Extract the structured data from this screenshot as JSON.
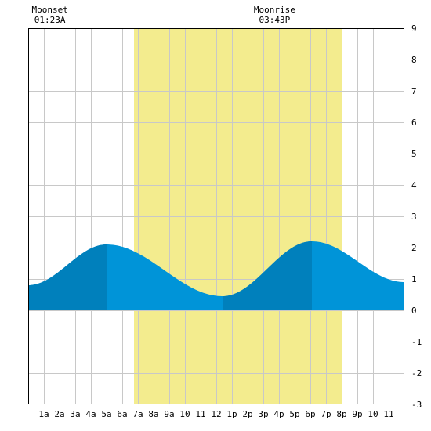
{
  "chart_data": {
    "type": "area",
    "annotations": [
      {
        "label": "Moonset",
        "time": "01:23A",
        "hour": 1.383
      },
      {
        "label": "Moonrise",
        "time": "03:43P",
        "hour": 15.717
      }
    ],
    "x_tick_labels": [
      "1a",
      "2a",
      "3a",
      "4a",
      "5a",
      "6a",
      "7a",
      "8a",
      "9a",
      "10",
      "11",
      "12",
      "1p",
      "2p",
      "3p",
      "4p",
      "5p",
      "6p",
      "7p",
      "8p",
      "9p",
      "10",
      "11"
    ],
    "xlim": [
      0,
      24
    ],
    "ylim": [
      -3,
      9
    ],
    "y_ticks": [
      -3,
      -2,
      -1,
      0,
      1,
      2,
      3,
      4,
      5,
      6,
      7,
      8,
      9
    ],
    "grid": true,
    "daylight": {
      "start": 6.75,
      "end": 20.0
    },
    "tide_extremes": [
      {
        "hour": 0.0,
        "height": 0.8
      },
      {
        "hour": 5.0,
        "height": 2.1
      },
      {
        "hour": 12.4,
        "height": 0.45
      },
      {
        "hour": 18.1,
        "height": 2.2
      },
      {
        "hour": 24.0,
        "height": 0.9
      }
    ],
    "dark_segments": [
      [
        0,
        5.0
      ],
      [
        12.4,
        18.1
      ]
    ],
    "colors": {
      "daylight": "#f3ec8e",
      "tide_light": "#0094d8",
      "tide_dark": "#0080bc",
      "grid": "#c8c8c8",
      "axis": "#000000"
    }
  }
}
